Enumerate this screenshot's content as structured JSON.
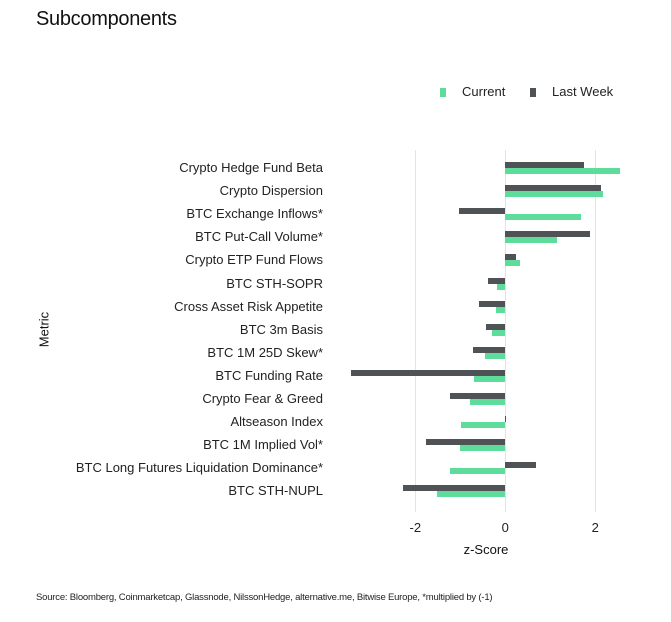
{
  "page": {
    "title": "Subcomponents",
    "source": "Source: Bloomberg, Coinmarketcap, Glassnode, NilssonHedge, alternative.me, Bitwise Europe, *multiplied by (-1)"
  },
  "colors": {
    "current": "#5EDC9B",
    "last_week": "#4F5356",
    "grid": "#e3e3e3"
  },
  "legend": [
    {
      "label": "Current",
      "color": "#5EDC9B"
    },
    {
      "label": "Last Week",
      "color": "#4F5356"
    }
  ],
  "chart_data": {
    "type": "bar",
    "orientation": "horizontal",
    "title": "Subcomponents",
    "xlabel": "z-Score",
    "ylabel": "Metric",
    "xlim": [
      -3.5,
      2.7
    ],
    "xticks": [
      -2,
      0,
      2
    ],
    "grid": "vertical",
    "legend_position": "top-right",
    "categories": [
      "Crypto Hedge Fund Beta",
      "Crypto Dispersion",
      "BTC Exchange Inflows*",
      "BTC Put-Call Volume*",
      "Crypto ETP Fund Flows",
      "BTC STH-SOPR",
      "Cross Asset Risk Appetite",
      "BTC 3m Basis",
      "BTC 1M 25D Skew*",
      "BTC Funding Rate",
      "Crypto Fear & Greed",
      "Altseason Index",
      "BTC 1M Implied Vol*",
      "BTC Long Futures Liquidation Dominance*",
      "BTC STH-NUPL"
    ],
    "series": [
      {
        "name": "Current",
        "values": [
          2.55,
          2.18,
          1.68,
          1.15,
          0.33,
          -0.18,
          -0.2,
          -0.29,
          -0.45,
          -0.7,
          -0.79,
          -0.99,
          -1.0,
          -1.24,
          -1.51
        ]
      },
      {
        "name": "Last Week",
        "values": [
          1.76,
          2.13,
          -1.03,
          1.88,
          0.24,
          -0.38,
          -0.58,
          -0.43,
          -0.72,
          -3.42,
          -1.23,
          0.01,
          -1.77,
          0.69,
          -2.27
        ]
      }
    ],
    "source": "Source: Bloomberg, Coinmarketcap, Glassnode, NilssonHedge, alternative.me, Bitwise Europe, *multiplied by (-1)"
  }
}
